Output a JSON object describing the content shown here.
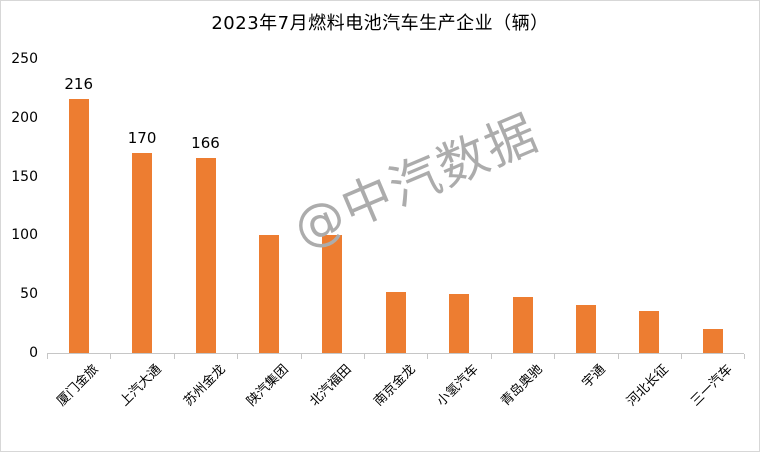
{
  "title": "2023年7月燃料电池汽车生产企业（辆）",
  "watermark": "@中汽数据",
  "colors": {
    "bar": "#ED7D31",
    "axis": "#C6C6C6",
    "text": "#000000",
    "watermark": "#ACACAC",
    "frame": "#D7D7D7",
    "background": "#FFFFFF"
  },
  "chart_data": {
    "type": "bar",
    "title": "2023年7月燃料电池汽车生产企业（辆）",
    "categories": [
      "厦门金旅",
      "上汽大通",
      "苏州金龙",
      "陕汽集团",
      "北汽福田",
      "南京金龙",
      "小氢汽车",
      "青岛奥驰",
      "宇通",
      "河北长征",
      "三一汽车"
    ],
    "values": [
      216,
      170,
      166,
      100,
      100,
      52,
      50,
      48,
      41,
      36,
      20
    ],
    "data_label_indices": [
      0,
      1,
      2
    ],
    "data_labels": [
      "216",
      "170",
      "166"
    ],
    "xlabel": "",
    "ylabel": "",
    "ylim": [
      0,
      250
    ],
    "yticks": [
      0,
      50,
      100,
      150,
      200,
      250
    ],
    "grid": false,
    "legend": "none"
  }
}
